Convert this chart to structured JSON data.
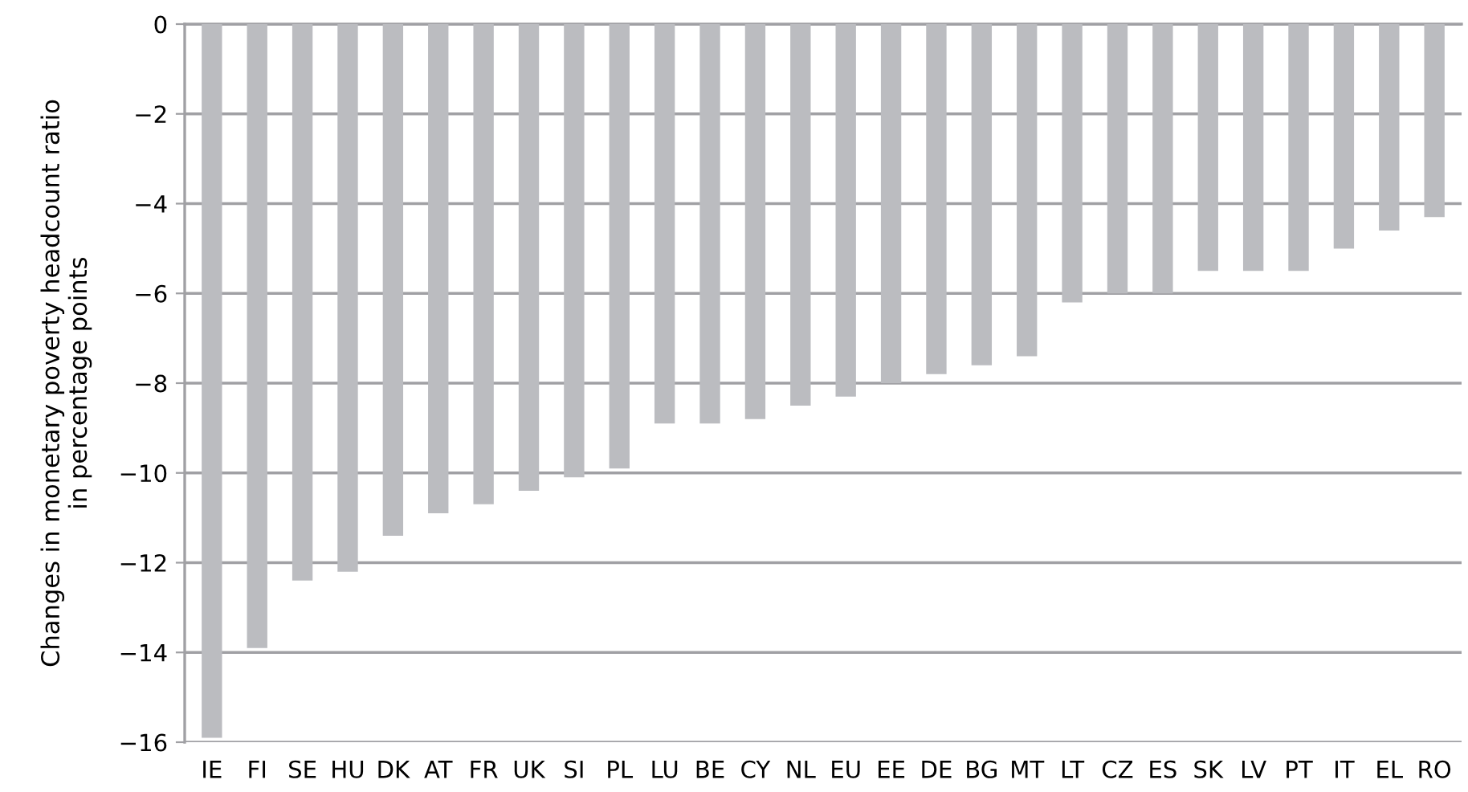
{
  "chart_data": {
    "type": "bar",
    "ylabel": "Changes in monetary poverty headcount ratio\nin percentage points",
    "categories": [
      "IE",
      "FI",
      "SE",
      "HU",
      "DK",
      "AT",
      "FR",
      "UK",
      "SI",
      "PL",
      "LU",
      "BE",
      "CY",
      "NL",
      "EU",
      "EE",
      "DE",
      "BG",
      "MT",
      "LT",
      "CZ",
      "ES",
      "SK",
      "LV",
      "PT",
      "IT",
      "EL",
      "RO"
    ],
    "values": [
      -15.9,
      -13.9,
      -12.4,
      -12.2,
      -11.4,
      -10.9,
      -10.7,
      -10.4,
      -10.1,
      -9.9,
      -8.9,
      -8.9,
      -8.8,
      -8.5,
      -8.3,
      -8.0,
      -7.8,
      -7.6,
      -7.4,
      -6.2,
      -6.0,
      -6.0,
      -5.5,
      -5.5,
      -5.5,
      -5.0,
      -4.6,
      -4.3
    ],
    "color": "#bbbcc0",
    "ylim": [
      -16,
      0
    ],
    "yticks": [
      {
        "value": -16,
        "label": "−16"
      },
      {
        "value": -14,
        "label": "−14"
      },
      {
        "value": -12,
        "label": "−12"
      },
      {
        "value": -10,
        "label": "−10"
      },
      {
        "value": -8,
        "label": "−8"
      },
      {
        "value": -6,
        "label": "−6"
      },
      {
        "value": -4,
        "label": "−4"
      },
      {
        "value": -2,
        "label": "−2"
      },
      0
    ],
    "grid": "y",
    "legend": false
  }
}
